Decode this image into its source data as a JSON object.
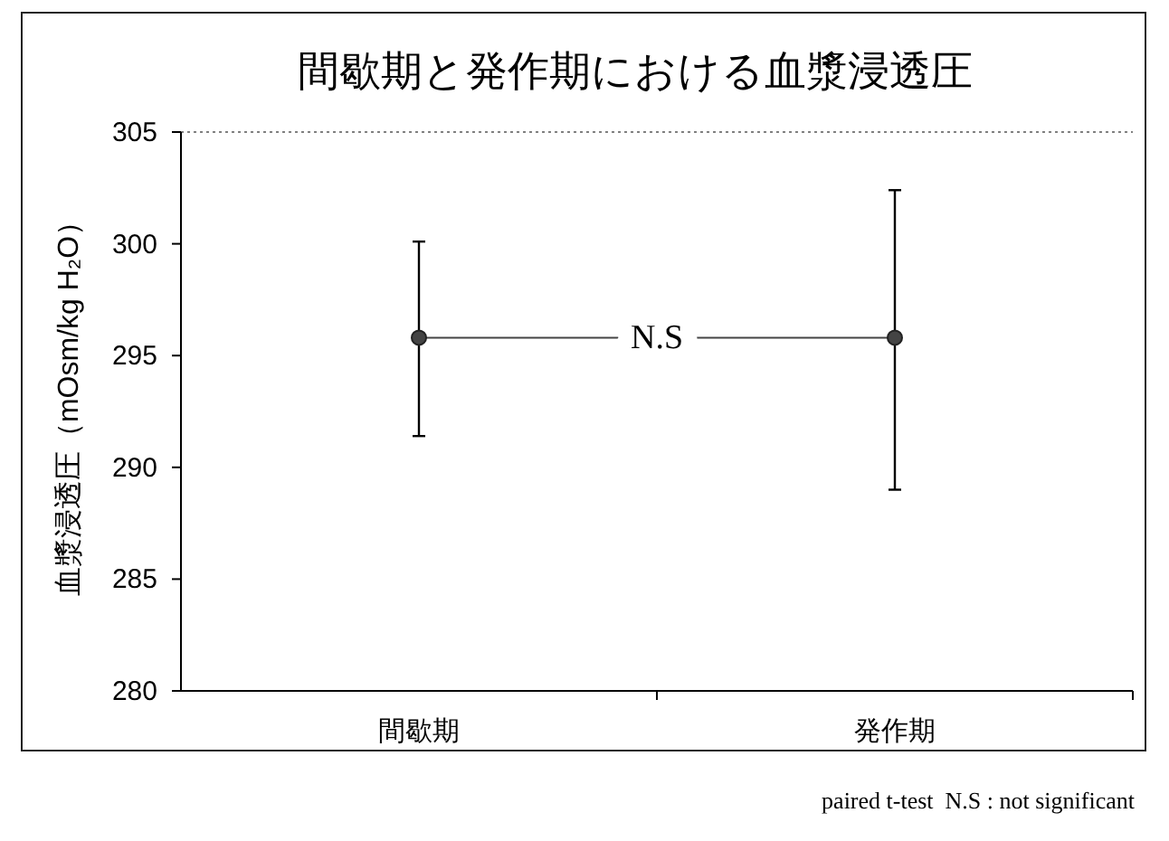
{
  "chart_data": {
    "type": "line",
    "title": "間歇期と発作期における血漿浸透圧",
    "ylabel": "血漿浸透圧（mOsm/kg H₂O）",
    "categories": [
      "間歇期",
      "発作期"
    ],
    "series": [
      {
        "color": "#444444",
        "values": [
          295.8,
          295.8
        ],
        "errors": [
          [
            291.4,
            300.1
          ],
          [
            289.0,
            302.4
          ]
        ]
      }
    ],
    "ylim": [
      280,
      305
    ],
    "yticks": [
      280,
      285,
      290,
      295,
      300,
      305
    ],
    "marker": "circle",
    "line_style": "solid",
    "ref_lines": [
      {
        "axis": "y",
        "value": 305,
        "line_style": "dotted",
        "color": "#808080"
      }
    ],
    "annotations": [
      {
        "text": "N.S",
        "y": 295.8
      },
      "paired t-test  N.S : not significant"
    ]
  }
}
